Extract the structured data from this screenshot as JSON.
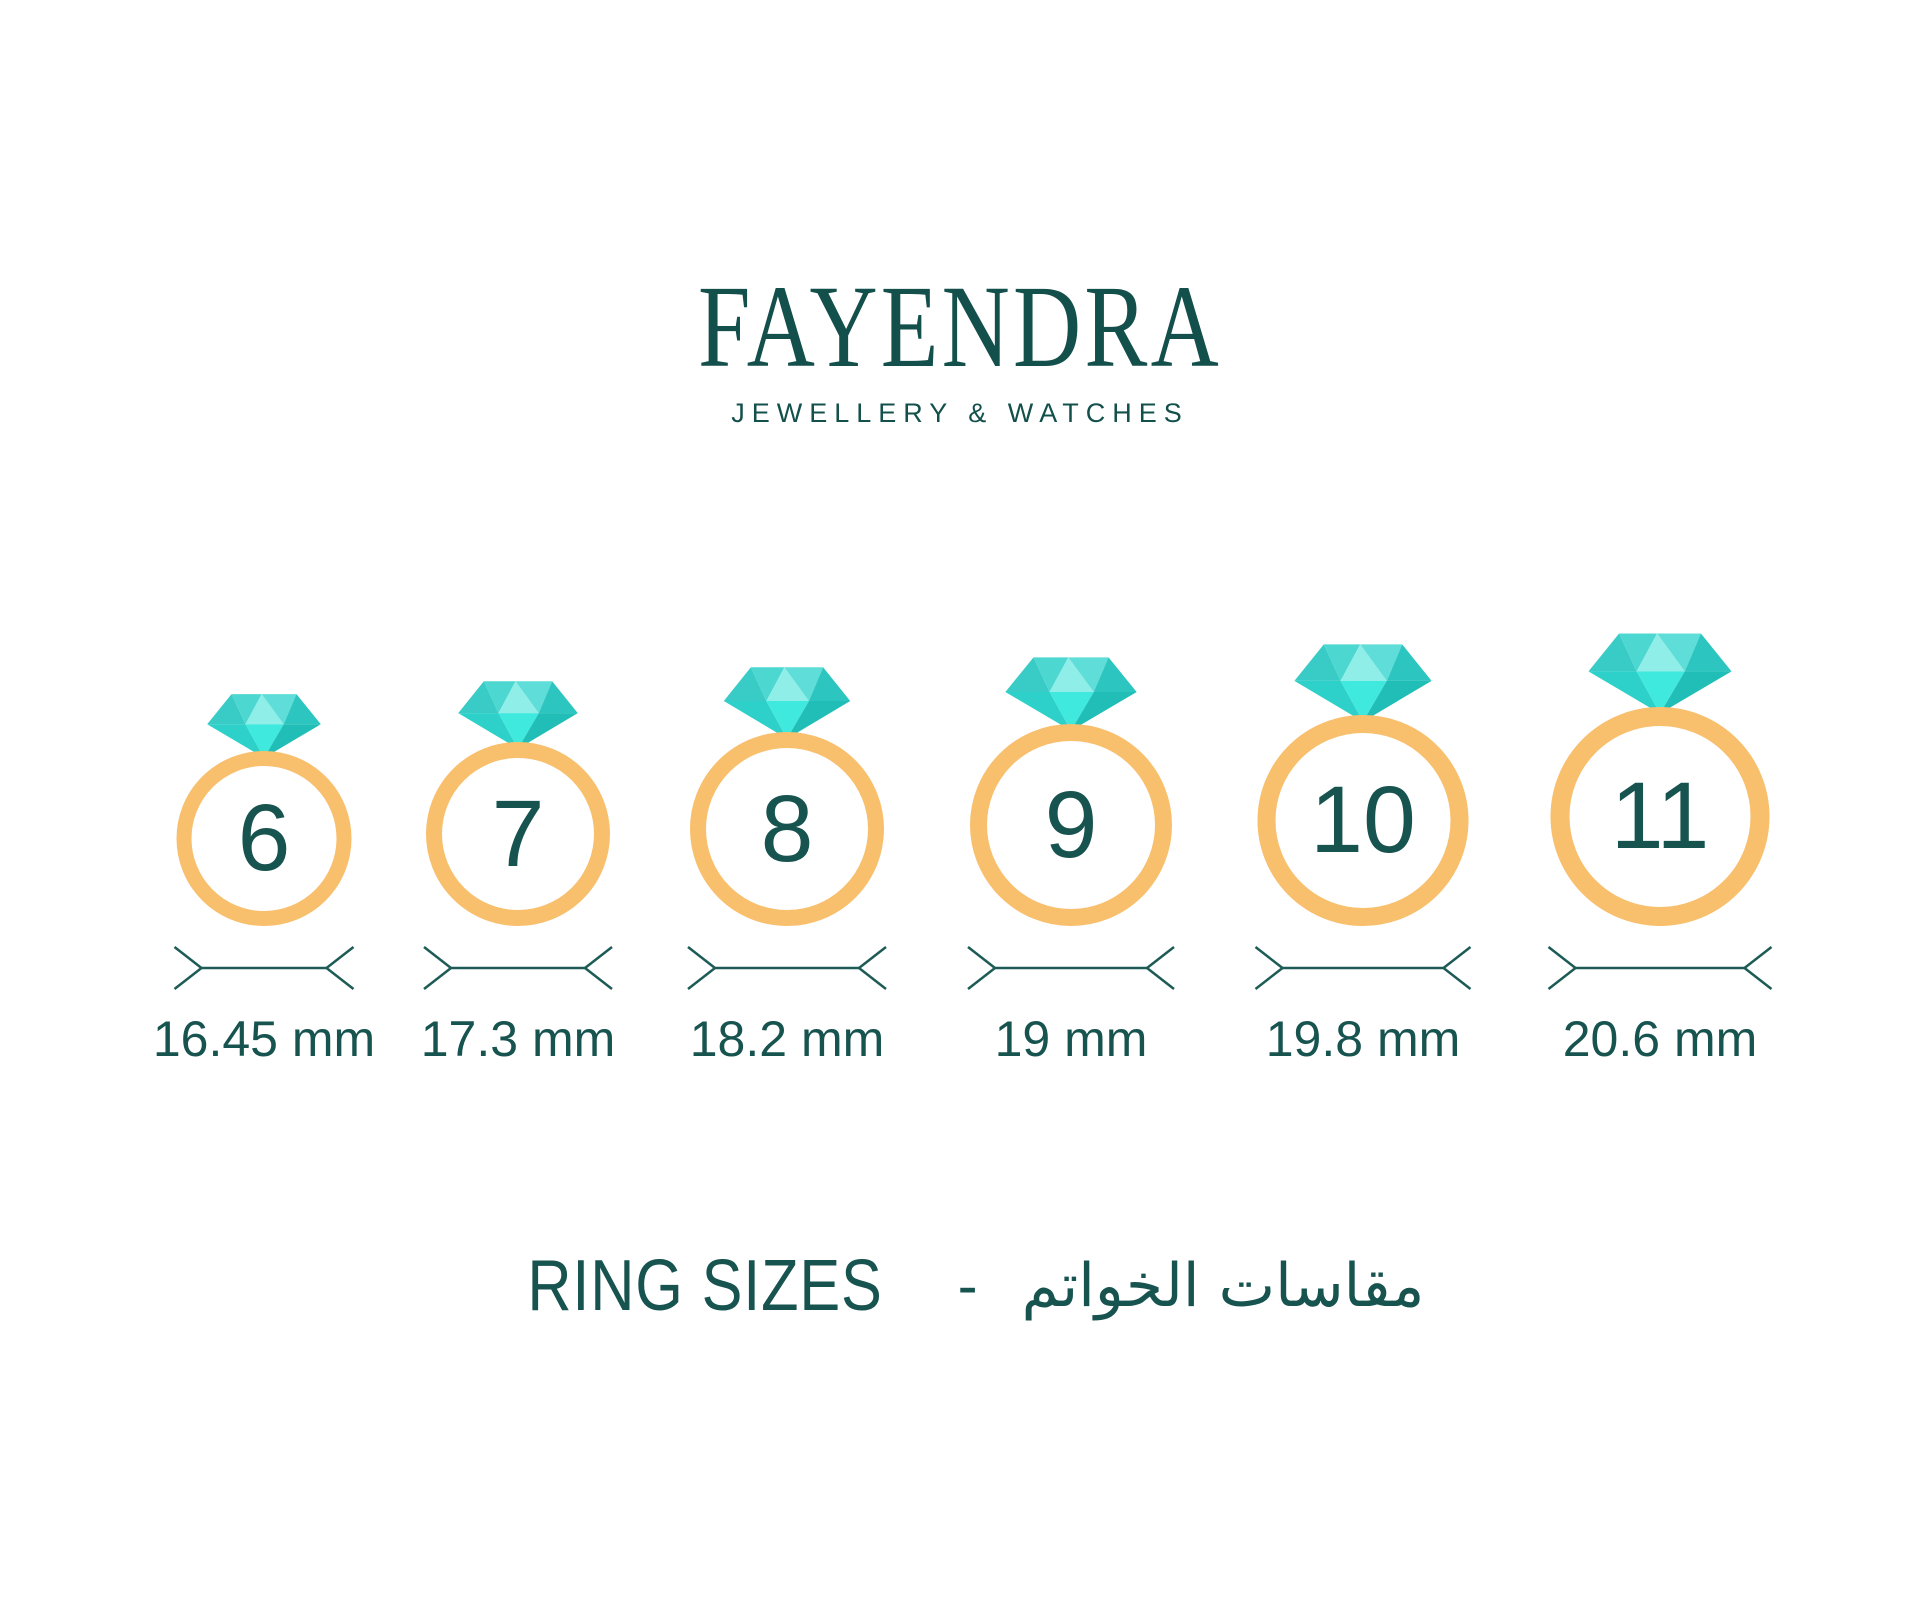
{
  "brand": {
    "name": "FAYENDRA",
    "tagline": "JEWELLERY & WATCHES"
  },
  "rings": [
    {
      "size": "6",
      "diameter_label": "16.45 mm",
      "diameter_mm": 16.45
    },
    {
      "size": "7",
      "diameter_label": "17.3 mm",
      "diameter_mm": 17.3
    },
    {
      "size": "8",
      "diameter_label": "18.2 mm",
      "diameter_mm": 18.2
    },
    {
      "size": "9",
      "diameter_label": "19 mm",
      "diameter_mm": 19.0
    },
    {
      "size": "10",
      "diameter_label": "19.8 mm",
      "diameter_mm": 19.8
    },
    {
      "size": "11",
      "diameter_label": "20.6 mm",
      "diameter_mm": 20.6
    }
  ],
  "footer": {
    "title_en": "RING SIZES",
    "separator": "-",
    "title_ar": "مقاسات الخواتم"
  },
  "colors": {
    "teal_text": "#17534F",
    "logo_teal": "#134F4B",
    "line_teal": "#1D5B56",
    "band_orange": "#F8BF6D",
    "diamond_facets": [
      "#39CCC7",
      "#4DD7D1",
      "#8FEEE8",
      "#5FDDD8",
      "#2DC5C0",
      "#2ED1C9",
      "#3FE9DD",
      "#20BEB6"
    ]
  }
}
